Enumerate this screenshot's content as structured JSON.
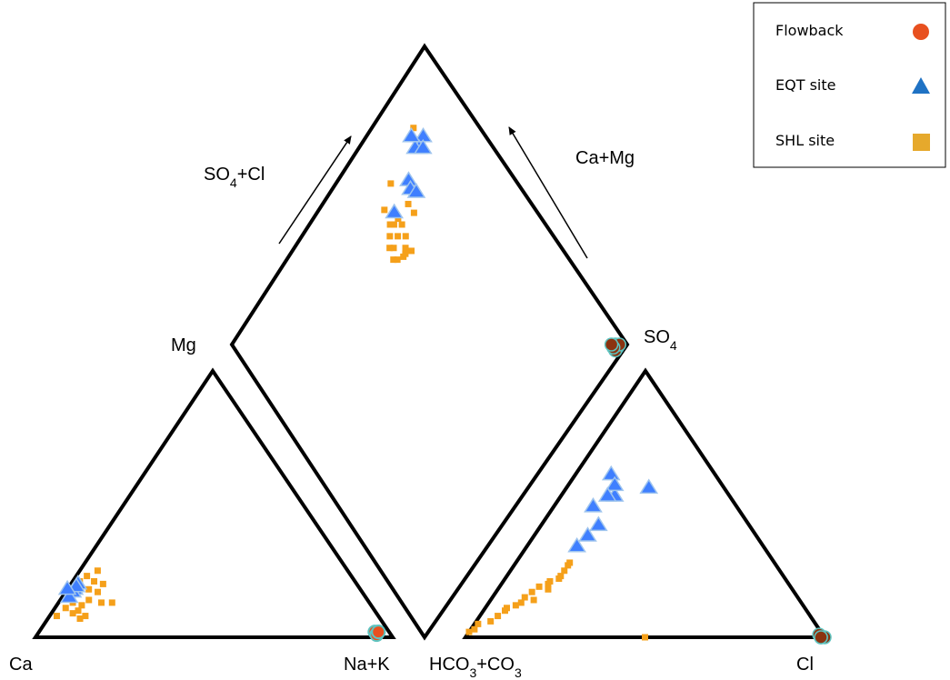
{
  "chart_data": {
    "type": "scatter",
    "title": "",
    "labels": {
      "ca": "Ca",
      "na_k": "Na+K",
      "mg": "Mg",
      "hco3_co3": "HCO3+CO3",
      "cl": "Cl",
      "so4": "SO4",
      "so4_cl": "SO4+Cl",
      "ca_mg": "Ca+Mg"
    },
    "legend": {
      "position": "top-right",
      "entries": [
        {
          "name": "Flowback",
          "marker": "circle",
          "color": "#e8501f"
        },
        {
          "name": "EQT site",
          "marker": "triangle",
          "color": "#1f72c4"
        },
        {
          "name": "SHL site",
          "marker": "square",
          "color": "#e6a92c"
        }
      ]
    },
    "colors": {
      "flowback_fill": "#e8501f",
      "flowback_fill_dark": "#8b3310",
      "flowback_edge": "#5ec4c0",
      "eqt_fill": "#3f7fff",
      "eqt_edge": "#9ec4ee",
      "shl_fill": "#f5a01a"
    },
    "series": [
      {
        "name": "Flowback",
        "cation": [
          [
            3,
            2,
            95
          ],
          [
            3,
            2,
            95
          ],
          [
            4,
            2,
            94
          ],
          [
            4,
            1,
            95
          ],
          [
            3,
            2,
            95
          ]
        ],
        "anion": [
          [
            0,
            1,
            99
          ],
          [
            0,
            0,
            100
          ],
          [
            0,
            1,
            99
          ],
          [
            1,
            1,
            98
          ],
          [
            0,
            1,
            99
          ]
        ],
        "diamond": [
          [
            2,
            97
          ],
          [
            2,
            96
          ],
          [
            3,
            97
          ],
          [
            2,
            98
          ],
          [
            3,
            96
          ],
          [
            4,
            96
          ]
        ]
      },
      {
        "name": "EQT site",
        "cation": [
          [
            78,
            20,
            2
          ],
          [
            80,
            18,
            2
          ],
          [
            81,
            17,
            2
          ],
          [
            83,
            15,
            2
          ],
          [
            79,
            19,
            2
          ],
          [
            82,
            18,
            0
          ]
        ],
        "anion": [
          [
            61,
            29,
            10
          ],
          [
            56,
            21,
            23
          ],
          [
            53,
            32,
            15
          ],
          [
            57,
            30,
            13
          ],
          [
            42,
            42,
            16
          ],
          [
            38,
            47,
            15
          ],
          [
            34,
            52,
            14
          ],
          [
            53,
            34,
            13
          ],
          [
            49,
            40,
            11
          ]
        ],
        "diamond": [
          [
            88,
            83
          ],
          [
            87,
            80
          ],
          [
            88,
            79
          ],
          [
            91,
            80
          ],
          [
            86,
            81
          ],
          [
            84,
            72
          ],
          [
            82,
            71
          ],
          [
            82,
            63
          ],
          [
            80,
            72
          ]
        ]
      },
      {
        "name": "SHL site",
        "cation": [
          [
            79,
            18,
            3
          ],
          [
            74,
            17,
            9
          ],
          [
            73,
            21,
            6
          ],
          [
            71,
            20,
            9
          ],
          [
            75,
            13,
            12
          ],
          [
            78,
            14,
            8
          ],
          [
            82,
            8,
            10
          ],
          [
            83,
            10,
            7
          ],
          [
            84,
            7,
            9
          ],
          [
            72,
            13,
            15
          ],
          [
            81,
            12,
            7
          ],
          [
            85,
            9,
            6
          ],
          [
            76,
            18,
            6
          ],
          [
            74,
            23,
            3
          ],
          [
            80,
            17,
            3
          ],
          [
            83,
            13,
            4
          ],
          [
            77,
            21,
            2
          ],
          [
            70,
            25,
            5
          ],
          [
            86,
            11,
            3
          ],
          [
            90,
            8,
            2
          ]
        ],
        "anion": [
          [
            2,
            98,
            0
          ],
          [
            5,
            94,
            1
          ],
          [
            6,
            90,
            4
          ],
          [
            8,
            87,
            5
          ],
          [
            10,
            84,
            6
          ],
          [
            12,
            80,
            8
          ],
          [
            13,
            78,
            9
          ],
          [
            15,
            76,
            9
          ],
          [
            17,
            73,
            10
          ],
          [
            19,
            70,
            11
          ],
          [
            21,
            66,
            13
          ],
          [
            23,
            62,
            15
          ],
          [
            25,
            60,
            15
          ],
          [
            27,
            58,
            15
          ],
          [
            28,
            57,
            15
          ],
          [
            14,
            74,
            12
          ],
          [
            18,
            68,
            14
          ],
          [
            22,
            63,
            15
          ],
          [
            3,
            96,
            1
          ],
          [
            11,
            83,
            6
          ],
          [
            20,
            67,
            13
          ],
          [
            0,
            50,
            50
          ]
        ],
        "diamond": [
          [
            92,
            82
          ],
          [
            88,
            67
          ],
          [
            85,
            61
          ],
          [
            80,
            63
          ],
          [
            77,
            68
          ],
          [
            80,
            61
          ],
          [
            75,
            62
          ],
          [
            72,
            59
          ],
          [
            76,
            57
          ],
          [
            77,
            60
          ],
          [
            73,
            60
          ],
          [
            80,
            68
          ],
          [
            81,
            60
          ],
          [
            73,
            56
          ],
          [
            72,
            58
          ],
          [
            79,
            58
          ],
          [
            74,
            55
          ],
          [
            71,
            61
          ],
          [
            77,
            56
          ],
          [
            78,
            63
          ]
        ]
      }
    ]
  }
}
